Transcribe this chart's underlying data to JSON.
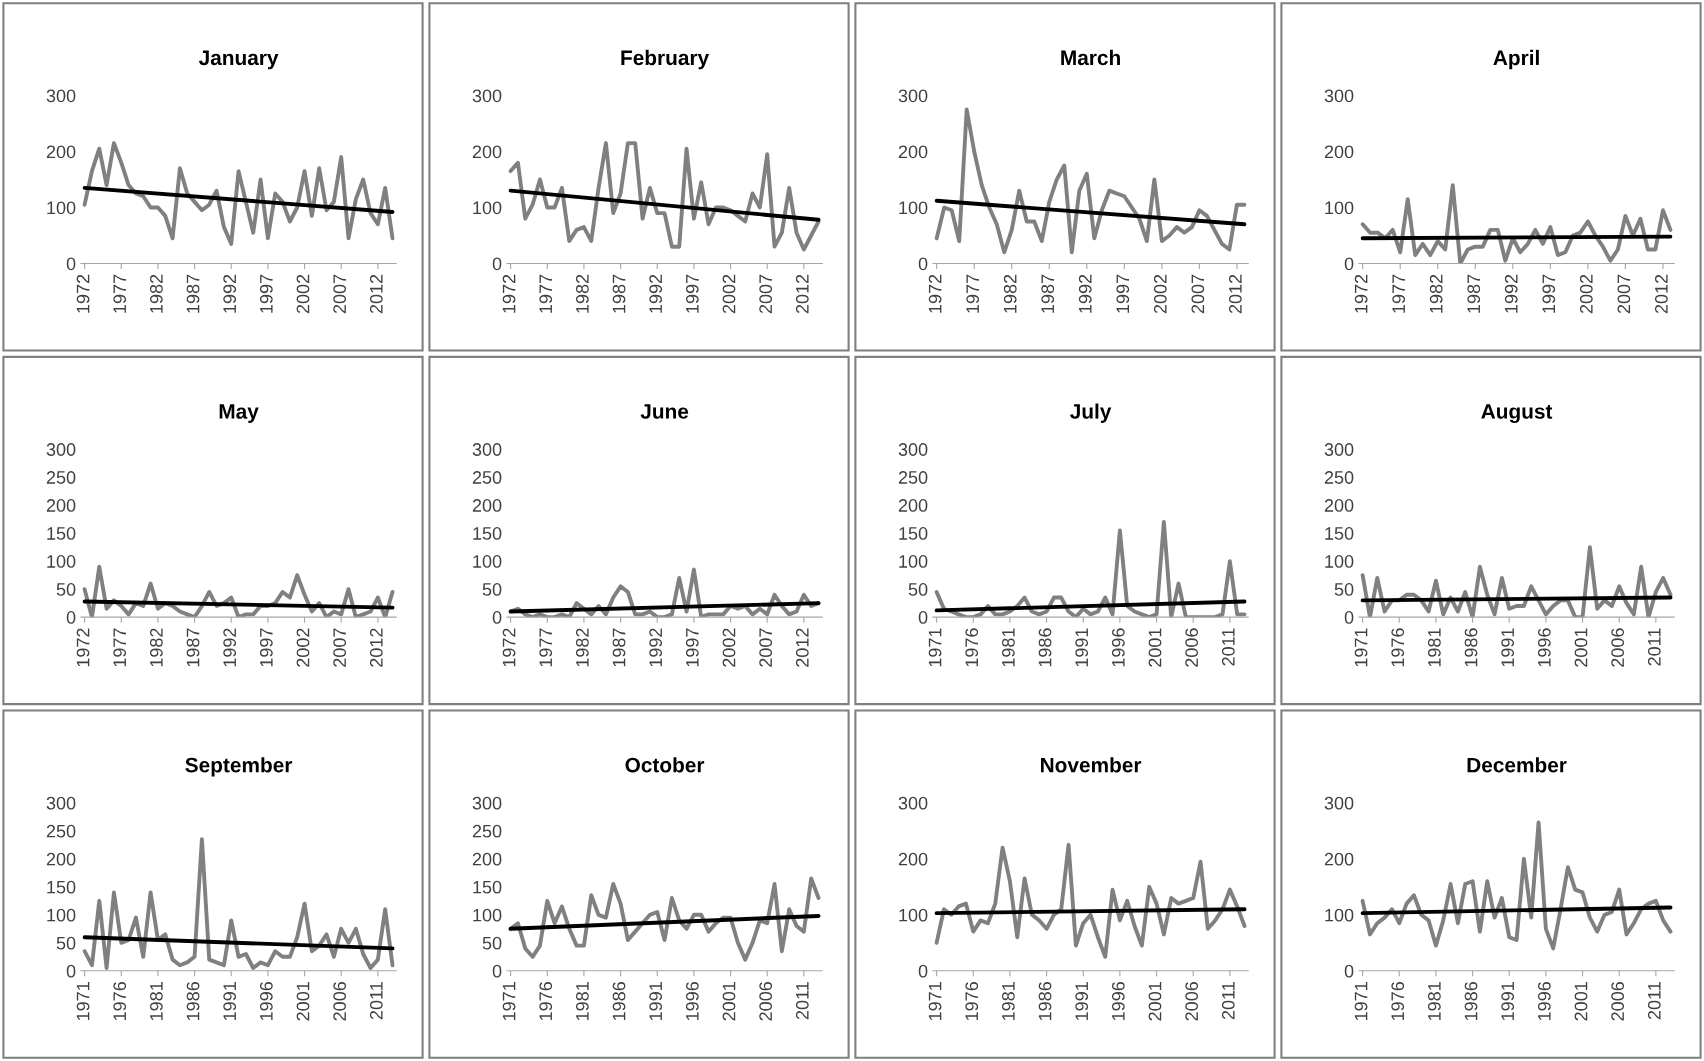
{
  "chart_data": [
    {
      "type": "line",
      "title": "January",
      "x": [
        1972,
        1973,
        1974,
        1975,
        1976,
        1977,
        1978,
        1979,
        1980,
        1981,
        1982,
        1983,
        1984,
        1985,
        1986,
        1987,
        1988,
        1989,
        1990,
        1991,
        1992,
        1993,
        1994,
        1995,
        1996,
        1997,
        1998,
        1999,
        2000,
        2001,
        2002,
        2003,
        2004,
        2005,
        2006,
        2007,
        2008,
        2009,
        2010,
        2011,
        2012,
        2013,
        2014
      ],
      "xlim": [
        1971.5,
        2014.5
      ],
      "xticks": [
        1972,
        1977,
        1982,
        1987,
        1992,
        1997,
        2002,
        2007,
        2012
      ],
      "ylim": [
        0,
        300
      ],
      "yticks": [
        0,
        100,
        200,
        300
      ],
      "series": [
        {
          "color": "#808080",
          "values": [
            105,
            165,
            205,
            140,
            215,
            180,
            140,
            125,
            120,
            100,
            100,
            85,
            45,
            170,
            125,
            110,
            95,
            105,
            130,
            65,
            35,
            165,
            110,
            55,
            150,
            45,
            125,
            110,
            75,
            100,
            165,
            85,
            170,
            95,
            110,
            190,
            45,
            115,
            150,
            90,
            70,
            135,
            45
          ]
        },
        {
          "type": "line",
          "color": "#000000",
          "x": [
            1972,
            2014
          ],
          "values": [
            135,
            92
          ]
        }
      ]
    },
    {
      "type": "line",
      "title": "February",
      "x": [
        1972,
        1973,
        1974,
        1975,
        1976,
        1977,
        1978,
        1979,
        1980,
        1981,
        1982,
        1983,
        1984,
        1985,
        1986,
        1987,
        1988,
        1989,
        1990,
        1991,
        1992,
        1993,
        1994,
        1995,
        1996,
        1997,
        1998,
        1999,
        2000,
        2001,
        2002,
        2003,
        2004,
        2005,
        2006,
        2007,
        2008,
        2009,
        2010,
        2011,
        2012,
        2013,
        2014
      ],
      "xlim": [
        1971.5,
        2014.5
      ],
      "xticks": [
        1972,
        1977,
        1982,
        1987,
        1992,
        1997,
        2002,
        2007,
        2012
      ],
      "ylim": [
        0,
        300
      ],
      "yticks": [
        0,
        100,
        200,
        300
      ],
      "series": [
        {
          "color": "#808080",
          "values": [
            165,
            180,
            80,
            105,
            150,
            100,
            100,
            135,
            40,
            60,
            65,
            40,
            135,
            215,
            90,
            125,
            215,
            215,
            80,
            135,
            90,
            90,
            30,
            30,
            205,
            80,
            145,
            70,
            100,
            100,
            95,
            85,
            75,
            125,
            100,
            195,
            30,
            55,
            135,
            55,
            25,
            50,
            75
          ]
        },
        {
          "type": "line",
          "color": "#000000",
          "x": [
            1972,
            2014
          ],
          "values": [
            130,
            78
          ]
        }
      ]
    },
    {
      "type": "line",
      "title": "March",
      "x": [
        1972,
        1973,
        1974,
        1975,
        1976,
        1977,
        1978,
        1979,
        1980,
        1981,
        1982,
        1983,
        1984,
        1985,
        1986,
        1987,
        1988,
        1989,
        1990,
        1991,
        1992,
        1993,
        1994,
        1995,
        1996,
        1997,
        1998,
        1999,
        2000,
        2001,
        2002,
        2003,
        2004,
        2005,
        2006,
        2007,
        2008,
        2009,
        2010,
        2011,
        2012,
        2013
      ],
      "xlim": [
        1971.5,
        2013.5
      ],
      "xticks": [
        1972,
        1977,
        1982,
        1987,
        1992,
        1997,
        2002,
        2007,
        2012
      ],
      "ylim": [
        0,
        300
      ],
      "yticks": [
        0,
        100,
        200,
        300
      ],
      "series": [
        {
          "color": "#808080",
          "values": [
            45,
            100,
            95,
            40,
            275,
            200,
            140,
            100,
            70,
            20,
            60,
            130,
            75,
            75,
            40,
            110,
            150,
            175,
            20,
            130,
            160,
            45,
            95,
            130,
            125,
            120,
            100,
            80,
            40,
            150,
            40,
            50,
            65,
            55,
            65,
            95,
            85,
            60,
            35,
            25,
            105,
            105
          ]
        },
        {
          "type": "line",
          "color": "#000000",
          "x": [
            1972,
            2013
          ],
          "values": [
            112,
            70
          ]
        }
      ]
    },
    {
      "type": "line",
      "title": "April",
      "x": [
        1972,
        1973,
        1974,
        1975,
        1976,
        1977,
        1978,
        1979,
        1980,
        1981,
        1982,
        1983,
        1984,
        1985,
        1986,
        1987,
        1988,
        1989,
        1990,
        1991,
        1992,
        1993,
        1994,
        1995,
        1996,
        1997,
        1998,
        1999,
        2000,
        2001,
        2002,
        2003,
        2004,
        2005,
        2006,
        2007,
        2008,
        2009,
        2010,
        2011,
        2012,
        2013
      ],
      "xlim": [
        1971.5,
        2013.5
      ],
      "xticks": [
        1972,
        1977,
        1982,
        1987,
        1992,
        1997,
        2002,
        2007,
        2012
      ],
      "ylim": [
        0,
        300
      ],
      "yticks": [
        0,
        100,
        200,
        300
      ],
      "series": [
        {
          "color": "#808080",
          "values": [
            70,
            55,
            55,
            45,
            60,
            20,
            115,
            15,
            35,
            15,
            40,
            25,
            140,
            0,
            25,
            30,
            30,
            60,
            60,
            5,
            45,
            20,
            35,
            60,
            35,
            65,
            15,
            20,
            50,
            55,
            75,
            50,
            30,
            5,
            25,
            85,
            50,
            80,
            25,
            25,
            95,
            60
          ]
        },
        {
          "type": "line",
          "color": "#000000",
          "x": [
            1972,
            2013
          ],
          "values": [
            45,
            48
          ]
        }
      ]
    },
    {
      "type": "line",
      "title": "May",
      "x": [
        1972,
        1973,
        1974,
        1975,
        1976,
        1977,
        1978,
        1979,
        1980,
        1981,
        1982,
        1983,
        1984,
        1985,
        1986,
        1987,
        1988,
        1989,
        1990,
        1991,
        1992,
        1993,
        1994,
        1995,
        1996,
        1997,
        1998,
        1999,
        2000,
        2001,
        2002,
        2003,
        2004,
        2005,
        2006,
        2007,
        2008,
        2009,
        2010,
        2011,
        2012,
        2013,
        2014
      ],
      "xlim": [
        1971.5,
        2014.5
      ],
      "xticks": [
        1972,
        1977,
        1982,
        1987,
        1992,
        1997,
        2002,
        2007,
        2012
      ],
      "ylim": [
        0,
        300
      ],
      "yticks": [
        0,
        50,
        100,
        150,
        200,
        250,
        300
      ],
      "series": [
        {
          "color": "#808080",
          "values": [
            50,
            0,
            90,
            15,
            30,
            20,
            5,
            25,
            20,
            60,
            15,
            25,
            20,
            10,
            5,
            0,
            20,
            45,
            20,
            25,
            35,
            0,
            5,
            5,
            20,
            20,
            25,
            45,
            35,
            75,
            40,
            10,
            25,
            0,
            10,
            5,
            50,
            0,
            5,
            10,
            35,
            0,
            45
          ]
        },
        {
          "type": "line",
          "color": "#000000",
          "x": [
            1972,
            2014
          ],
          "values": [
            28,
            17
          ]
        }
      ]
    },
    {
      "type": "line",
      "title": "June",
      "x": [
        1972,
        1973,
        1974,
        1975,
        1976,
        1977,
        1978,
        1979,
        1980,
        1981,
        1982,
        1983,
        1984,
        1985,
        1986,
        1987,
        1988,
        1989,
        1990,
        1991,
        1992,
        1993,
        1994,
        1995,
        1996,
        1997,
        1998,
        1999,
        2000,
        2001,
        2002,
        2003,
        2004,
        2005,
        2006,
        2007,
        2008,
        2009,
        2010,
        2011,
        2012,
        2013,
        2014
      ],
      "xlim": [
        1971.5,
        2014.5
      ],
      "xticks": [
        1972,
        1977,
        1982,
        1987,
        1992,
        1997,
        2002,
        2007,
        2012
      ],
      "ylim": [
        0,
        300
      ],
      "yticks": [
        0,
        50,
        100,
        150,
        200,
        250,
        300
      ],
      "series": [
        {
          "color": "#808080",
          "values": [
            10,
            15,
            5,
            0,
            5,
            0,
            0,
            5,
            0,
            25,
            15,
            5,
            20,
            5,
            35,
            55,
            45,
            5,
            5,
            10,
            0,
            0,
            5,
            70,
            10,
            85,
            0,
            5,
            5,
            5,
            20,
            15,
            20,
            5,
            15,
            5,
            40,
            20,
            5,
            10,
            40,
            20,
            25
          ]
        },
        {
          "type": "line",
          "color": "#000000",
          "x": [
            1972,
            2014
          ],
          "values": [
            10,
            25
          ]
        }
      ]
    },
    {
      "type": "line",
      "title": "July",
      "x": [
        1971,
        1972,
        1973,
        1974,
        1975,
        1976,
        1977,
        1978,
        1979,
        1980,
        1981,
        1982,
        1983,
        1984,
        1985,
        1986,
        1987,
        1988,
        1989,
        1990,
        1991,
        1992,
        1993,
        1994,
        1995,
        1996,
        1997,
        1998,
        1999,
        2000,
        2001,
        2002,
        2003,
        2004,
        2005,
        2006,
        2007,
        2008,
        2009,
        2010,
        2011,
        2012,
        2013
      ],
      "xlim": [
        1970.5,
        2013.5
      ],
      "xticks": [
        1971,
        1976,
        1981,
        1986,
        1991,
        1996,
        2001,
        2006,
        2011
      ],
      "ylim": [
        0,
        300
      ],
      "yticks": [
        0,
        50,
        100,
        150,
        200,
        250,
        300
      ],
      "series": [
        {
          "color": "#808080",
          "values": [
            45,
            15,
            10,
            5,
            0,
            0,
            5,
            20,
            5,
            5,
            10,
            20,
            35,
            10,
            5,
            10,
            35,
            35,
            10,
            0,
            15,
            5,
            10,
            35,
            5,
            155,
            20,
            10,
            5,
            0,
            5,
            170,
            0,
            60,
            0,
            0,
            0,
            0,
            0,
            5,
            100,
            5,
            5
          ]
        },
        {
          "type": "line",
          "color": "#000000",
          "x": [
            1971,
            2013
          ],
          "values": [
            12,
            28
          ]
        }
      ]
    },
    {
      "type": "line",
      "title": "August",
      "x": [
        1971,
        1972,
        1973,
        1974,
        1975,
        1976,
        1977,
        1978,
        1979,
        1980,
        1981,
        1982,
        1983,
        1984,
        1985,
        1986,
        1987,
        1988,
        1989,
        1990,
        1991,
        1992,
        1993,
        1994,
        1995,
        1996,
        1997,
        1998,
        1999,
        2000,
        2001,
        2002,
        2003,
        2004,
        2005,
        2006,
        2007,
        2008,
        2009,
        2010,
        2011,
        2012,
        2013
      ],
      "xlim": [
        1970.5,
        2013.5
      ],
      "xticks": [
        1971,
        1976,
        1981,
        1986,
        1991,
        1996,
        2001,
        2006,
        2011
      ],
      "ylim": [
        0,
        300
      ],
      "yticks": [
        0,
        50,
        100,
        150,
        200,
        250,
        300
      ],
      "series": [
        {
          "color": "#808080",
          "values": [
            75,
            0,
            70,
            10,
            30,
            30,
            40,
            40,
            30,
            10,
            65,
            5,
            35,
            10,
            45,
            0,
            90,
            40,
            5,
            70,
            15,
            20,
            20,
            55,
            30,
            5,
            20,
            30,
            30,
            0,
            0,
            125,
            15,
            30,
            20,
            55,
            25,
            5,
            90,
            0,
            45,
            70,
            40
          ]
        },
        {
          "type": "line",
          "color": "#000000",
          "x": [
            1971,
            2013
          ],
          "values": [
            30,
            35
          ]
        }
      ]
    },
    {
      "type": "line",
      "title": "September",
      "x": [
        1971,
        1972,
        1973,
        1974,
        1975,
        1976,
        1977,
        1978,
        1979,
        1980,
        1981,
        1982,
        1983,
        1984,
        1985,
        1986,
        1987,
        1988,
        1989,
        1990,
        1991,
        1992,
        1993,
        1994,
        1995,
        1996,
        1997,
        1998,
        1999,
        2000,
        2001,
        2002,
        2003,
        2004,
        2005,
        2006,
        2007,
        2008,
        2009,
        2010,
        2011,
        2012,
        2013
      ],
      "xlim": [
        1970.5,
        2013.5
      ],
      "xticks": [
        1971,
        1976,
        1981,
        1986,
        1991,
        1996,
        2001,
        2006,
        2011
      ],
      "ylim": [
        0,
        300
      ],
      "yticks": [
        0,
        50,
        100,
        150,
        200,
        250,
        300
      ],
      "series": [
        {
          "color": "#808080",
          "values": [
            35,
            10,
            125,
            5,
            140,
            50,
            55,
            95,
            25,
            140,
            55,
            65,
            20,
            10,
            15,
            25,
            235,
            20,
            15,
            10,
            90,
            25,
            30,
            5,
            15,
            10,
            35,
            25,
            25,
            60,
            120,
            35,
            45,
            65,
            25,
            75,
            50,
            75,
            30,
            5,
            20,
            110,
            10
          ]
        },
        {
          "type": "line",
          "color": "#000000",
          "x": [
            1971,
            2013
          ],
          "values": [
            60,
            40
          ]
        }
      ]
    },
    {
      "type": "line",
      "title": "October",
      "x": [
        1971,
        1972,
        1973,
        1974,
        1975,
        1976,
        1977,
        1978,
        1979,
        1980,
        1981,
        1982,
        1983,
        1984,
        1985,
        1986,
        1987,
        1988,
        1989,
        1990,
        1991,
        1992,
        1993,
        1994,
        1995,
        1996,
        1997,
        1998,
        1999,
        2000,
        2001,
        2002,
        2003,
        2004,
        2005,
        2006,
        2007,
        2008,
        2009,
        2010,
        2011,
        2012,
        2013
      ],
      "xlim": [
        1970.5,
        2013.5
      ],
      "xticks": [
        1971,
        1976,
        1981,
        1986,
        1991,
        1996,
        2001,
        2006,
        2011
      ],
      "ylim": [
        0,
        300
      ],
      "yticks": [
        0,
        50,
        100,
        150,
        200,
        250,
        300
      ],
      "series": [
        {
          "color": "#808080",
          "values": [
            75,
            85,
            40,
            25,
            45,
            125,
            85,
            115,
            75,
            45,
            45,
            135,
            100,
            95,
            155,
            120,
            55,
            70,
            85,
            100,
            105,
            55,
            130,
            90,
            75,
            100,
            100,
            70,
            85,
            95,
            95,
            50,
            20,
            50,
            90,
            85,
            155,
            35,
            110,
            80,
            70,
            165,
            130
          ]
        },
        {
          "type": "line",
          "color": "#000000",
          "x": [
            1971,
            2013
          ],
          "values": [
            75,
            98
          ]
        }
      ]
    },
    {
      "type": "line",
      "title": "November",
      "x": [
        1971,
        1972,
        1973,
        1974,
        1975,
        1976,
        1977,
        1978,
        1979,
        1980,
        1981,
        1982,
        1983,
        1984,
        1985,
        1986,
        1987,
        1988,
        1989,
        1990,
        1991,
        1992,
        1993,
        1994,
        1995,
        1996,
        1997,
        1998,
        1999,
        2000,
        2001,
        2002,
        2003,
        2004,
        2005,
        2006,
        2007,
        2008,
        2009,
        2010,
        2011,
        2012,
        2013
      ],
      "xlim": [
        1970.5,
        2013.5
      ],
      "xticks": [
        1971,
        1976,
        1981,
        1986,
        1991,
        1996,
        2001,
        2006,
        2011
      ],
      "ylim": [
        0,
        300
      ],
      "yticks": [
        0,
        100,
        200,
        300
      ],
      "series": [
        {
          "color": "#808080",
          "values": [
            50,
            110,
            100,
            115,
            120,
            70,
            90,
            85,
            120,
            220,
            160,
            60,
            165,
            100,
            90,
            75,
            100,
            110,
            225,
            45,
            85,
            100,
            60,
            25,
            145,
            90,
            125,
            80,
            45,
            150,
            120,
            65,
            130,
            120,
            125,
            130,
            195,
            75,
            90,
            110,
            145,
            115,
            80
          ]
        },
        {
          "type": "line",
          "color": "#000000",
          "x": [
            1971,
            2013
          ],
          "values": [
            103,
            110
          ]
        }
      ]
    },
    {
      "type": "line",
      "title": "December",
      "x": [
        1971,
        1972,
        1973,
        1974,
        1975,
        1976,
        1977,
        1978,
        1979,
        1980,
        1981,
        1982,
        1983,
        1984,
        1985,
        1986,
        1987,
        1988,
        1989,
        1990,
        1991,
        1992,
        1993,
        1994,
        1995,
        1996,
        1997,
        1998,
        1999,
        2000,
        2001,
        2002,
        2003,
        2004,
        2005,
        2006,
        2007,
        2008,
        2009,
        2010,
        2011,
        2012,
        2013
      ],
      "xlim": [
        1970.5,
        2013.5
      ],
      "xticks": [
        1971,
        1976,
        1981,
        1986,
        1991,
        1996,
        2001,
        2006,
        2011
      ],
      "ylim": [
        0,
        300
      ],
      "yticks": [
        0,
        100,
        200,
        300
      ],
      "series": [
        {
          "color": "#808080",
          "values": [
            125,
            65,
            85,
            95,
            110,
            85,
            120,
            135,
            100,
            90,
            45,
            90,
            155,
            85,
            155,
            160,
            70,
            160,
            95,
            130,
            60,
            55,
            200,
            95,
            265,
            75,
            40,
            110,
            185,
            145,
            140,
            95,
            70,
            100,
            105,
            145,
            65,
            85,
            110,
            120,
            125,
            90,
            70
          ]
        },
        {
          "type": "line",
          "color": "#000000",
          "x": [
            1971,
            2013
          ],
          "values": [
            103,
            113
          ]
        }
      ]
    }
  ]
}
